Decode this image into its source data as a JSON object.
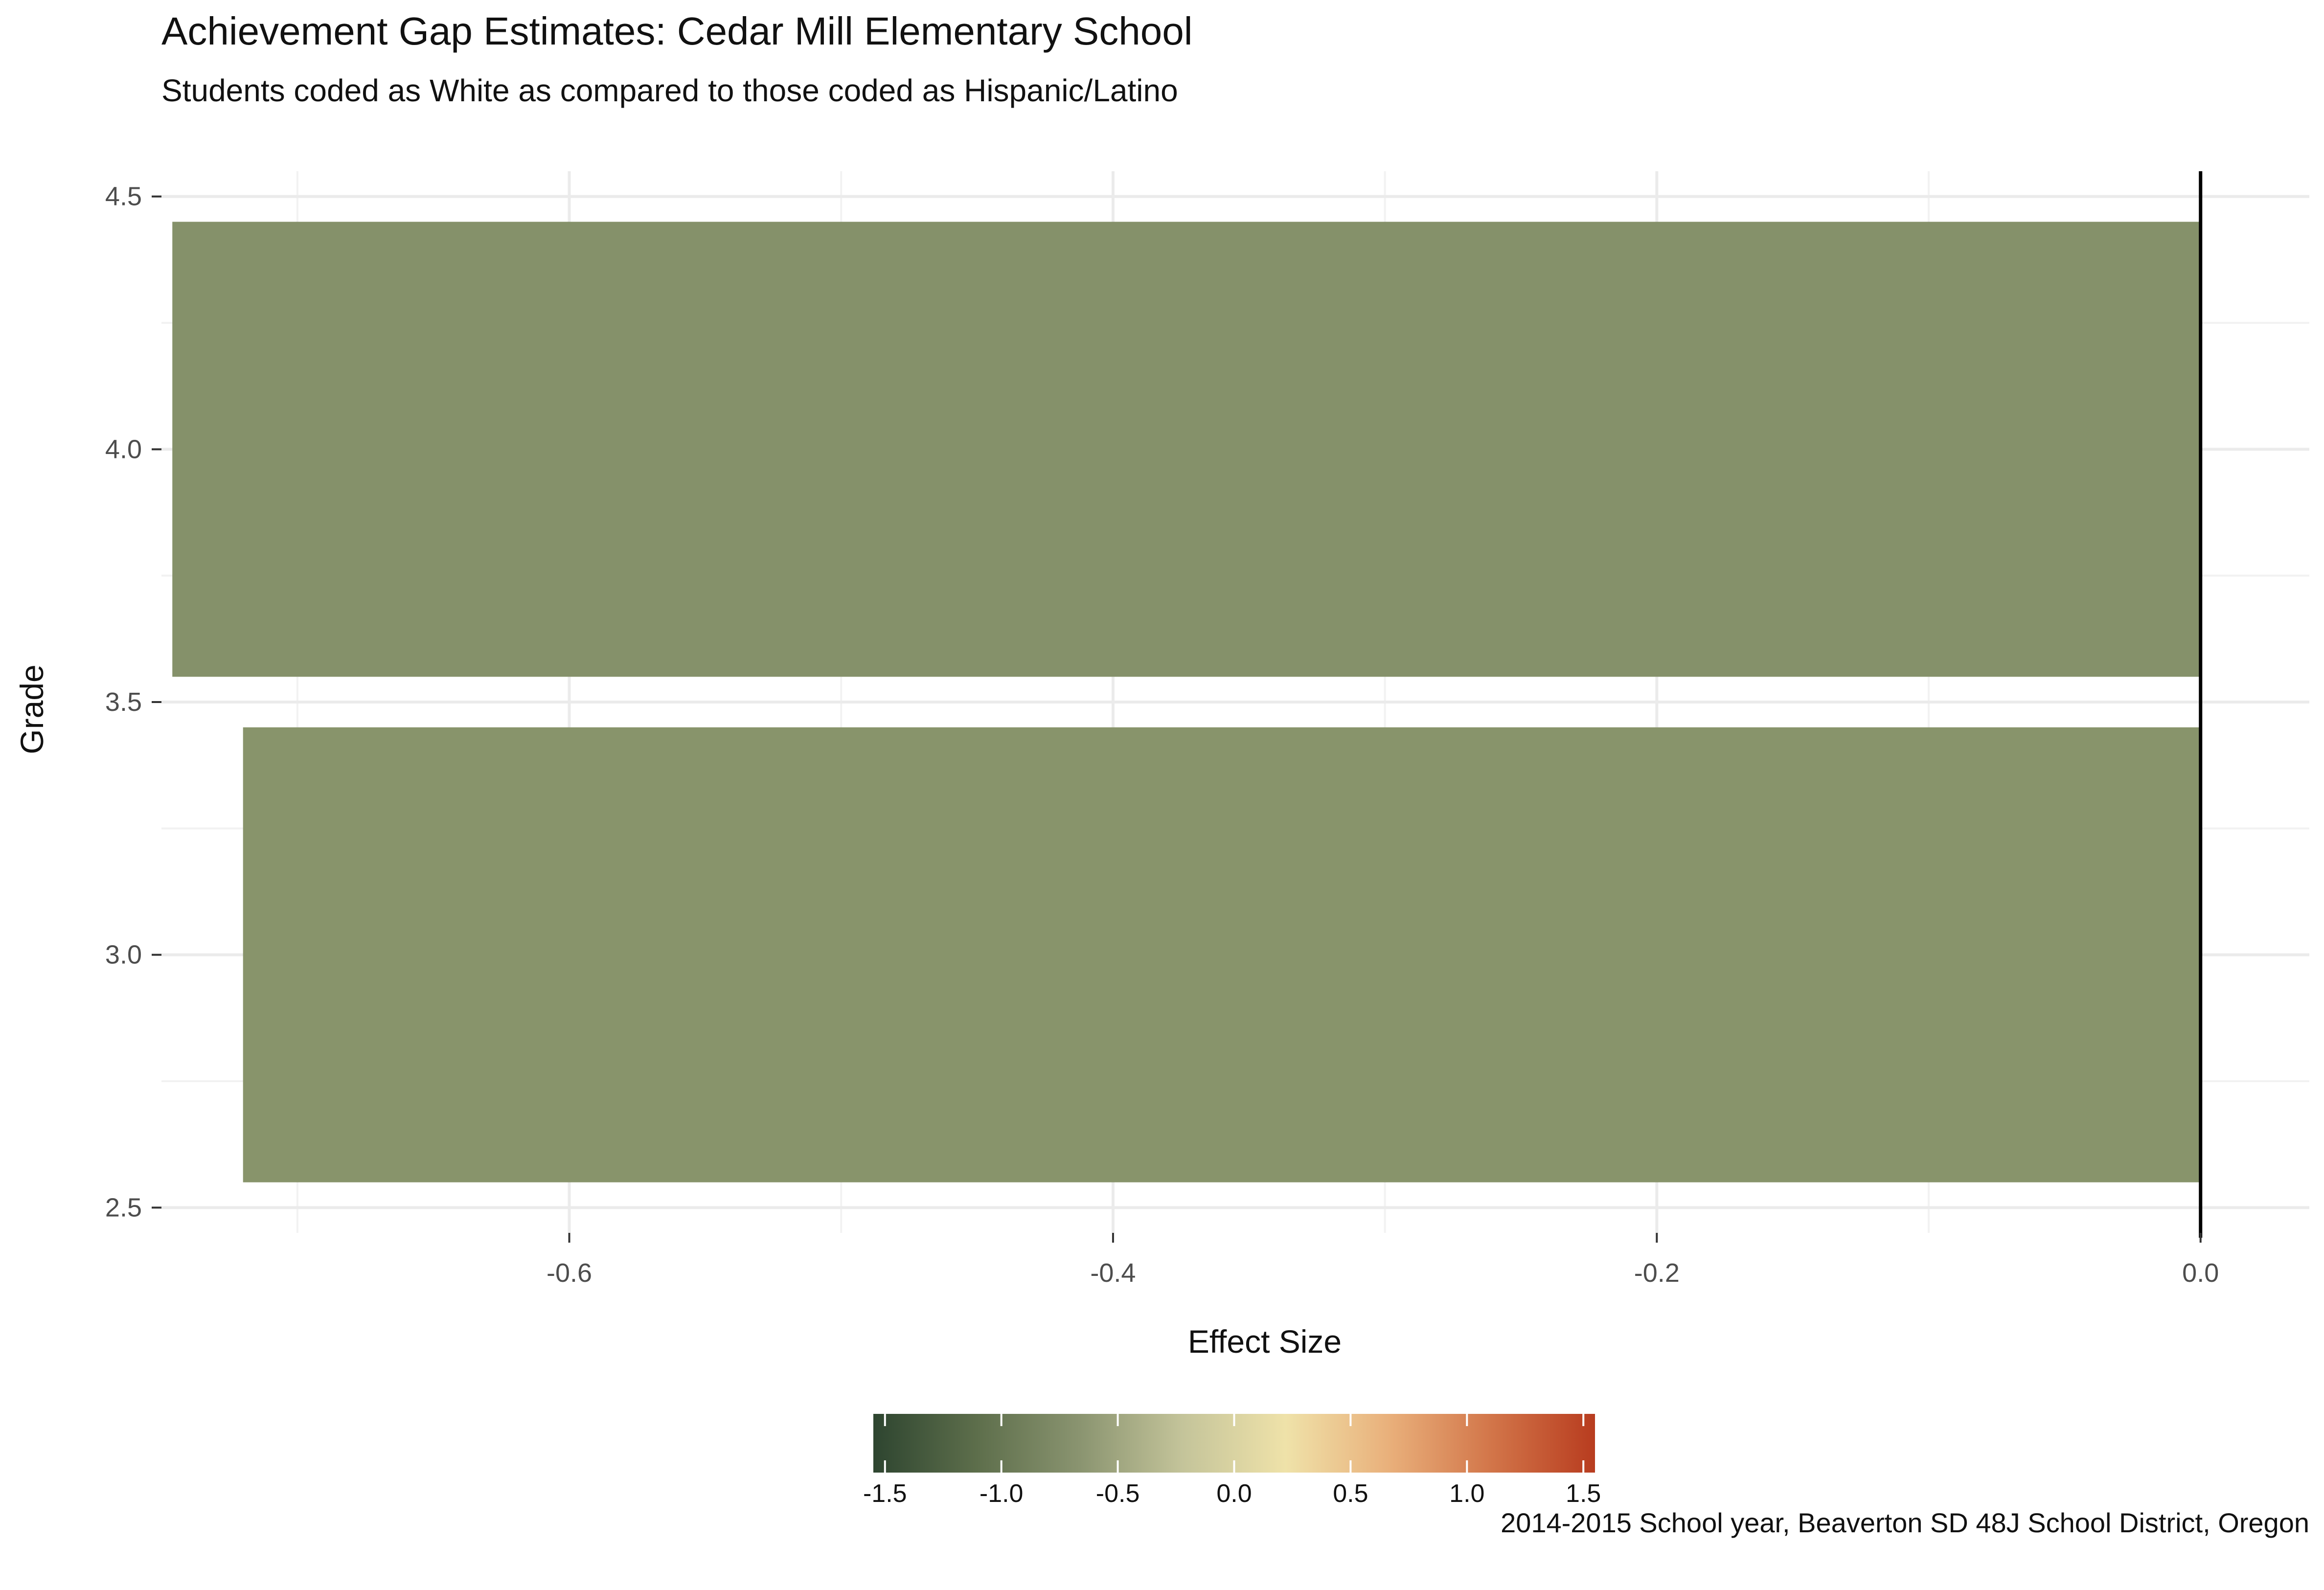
{
  "chart_data": {
    "type": "bar",
    "orientation": "horizontal",
    "title": "Achievement Gap Estimates: Cedar Mill Elementary School",
    "subtitle": "Students coded as White as compared to those coded as Hispanic/Latino",
    "caption": "2014-2015 School year, Beaverton SD 48J School District, Oregon",
    "xlabel": "Effect Size",
    "ylabel": "Grade",
    "xlim": [
      -0.75,
      0.04
    ],
    "ylim": [
      2.5,
      4.5
    ],
    "x_ticks": [
      "-0.6",
      "-0.4",
      "-0.2",
      "0.0"
    ],
    "x_tick_values": [
      -0.6,
      -0.4,
      -0.2,
      0.0
    ],
    "y_ticks": [
      "2.5",
      "3.0",
      "3.5",
      "4.0",
      "4.5"
    ],
    "y_tick_values": [
      2.5,
      3.0,
      3.5,
      4.0,
      4.5
    ],
    "reference_line_x": 0.0,
    "grid": true,
    "bars": [
      {
        "grade": 3,
        "value": -0.72,
        "color": "#88946b"
      },
      {
        "grade": 4,
        "value": -0.746,
        "color": "#85916a"
      }
    ],
    "legend": {
      "placement": "bottom",
      "type": "colorbar",
      "range": [
        -1.55,
        1.55
      ],
      "tick_labels": [
        "-1.5",
        "-1.0",
        "-0.5",
        "0.0",
        "0.5",
        "1.0",
        "1.5"
      ],
      "tick_values": [
        -1.5,
        -1.0,
        -0.5,
        0.0,
        0.5,
        1.0,
        1.5
      ],
      "colors": [
        "#2e4530",
        "#5d6e4b",
        "#8a9470",
        "#c4c49a",
        "#efe2a9",
        "#e9b07b",
        "#d27549",
        "#b83c1f"
      ]
    }
  }
}
